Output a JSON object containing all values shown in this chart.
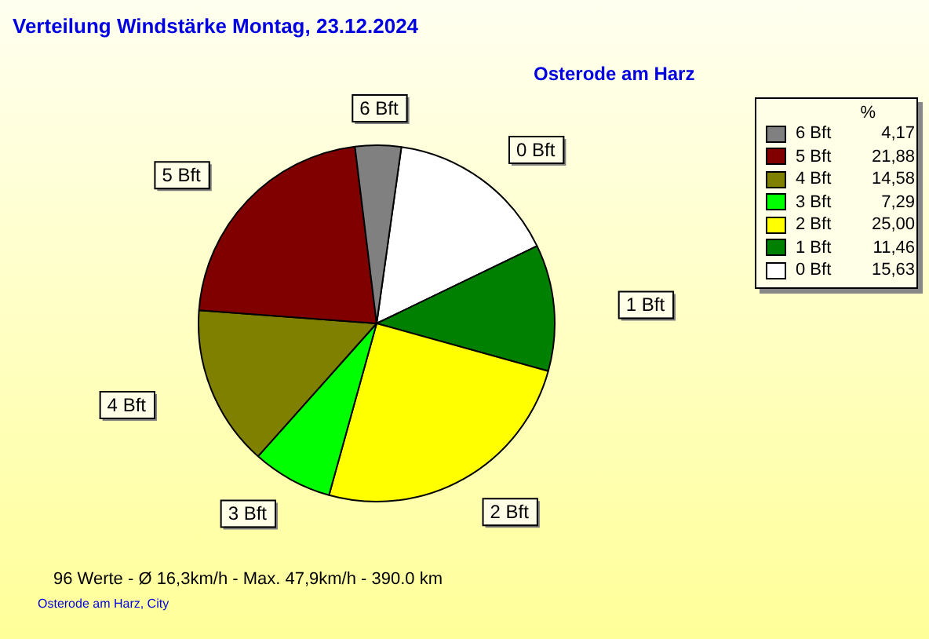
{
  "chart_data": {
    "type": "pie",
    "title": "Verteilung Windstärke  Montag, 23.12.2024",
    "subtitle": "Osterode am Harz",
    "legend_title": "%",
    "legend": "top right",
    "categories": [
      "0 Bft",
      "1 Bft",
      "2 Bft",
      "3 Bft",
      "4 Bft",
      "5 Bft",
      "6 Bft"
    ],
    "values": [
      15.63,
      11.46,
      25.0,
      7.29,
      14.58,
      21.88,
      4.17
    ],
    "value_labels": [
      "15,63",
      "11,46",
      "25,00",
      "7,29",
      "14,58",
      "21,88",
      "4,17"
    ],
    "colors": [
      "#ffffff",
      "#008000",
      "#ffff00",
      "#00ff00",
      "#808000",
      "#800000",
      "#808080"
    ],
    "annotations": [
      "96 Werte  -  Ø 16,3km/h  -  Max. 47,9km/h  -  390.0 km",
      "Osterode am Harz, City"
    ]
  }
}
